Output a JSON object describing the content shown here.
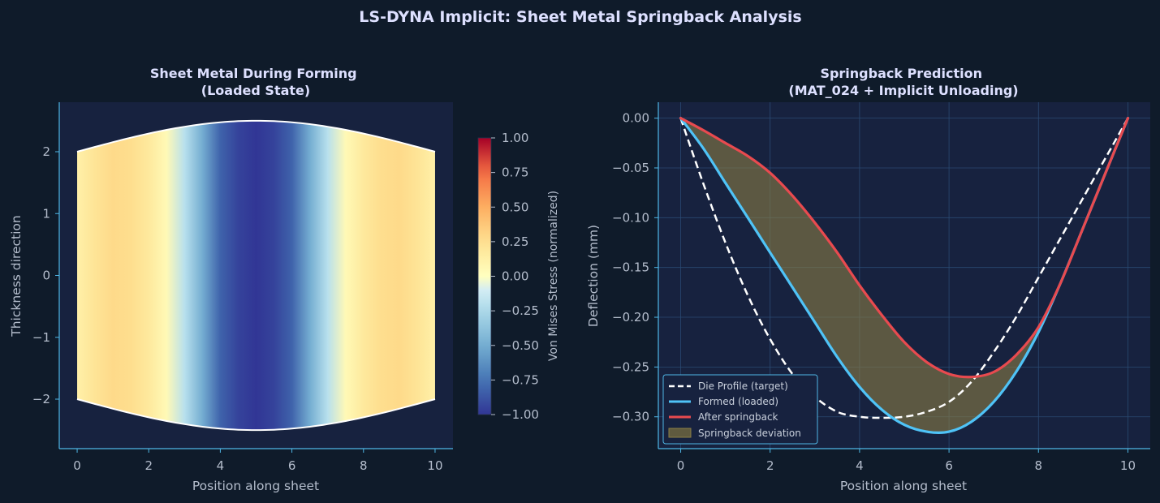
{
  "figure": {
    "suptitle": "LS-DYNA Implicit: Sheet Metal Springback Analysis",
    "background": "#0f1b2a",
    "axes_bg": "#17223f",
    "spine_color": "#4fb7e6",
    "text_color": "#b4bdcc",
    "title_color": "#dde0ff"
  },
  "chart_data": [
    {
      "type": "heatmap",
      "title": "Sheet Metal During Forming\n(Loaded State)",
      "xlabel": "Position along sheet",
      "ylabel": "Thickness direction",
      "xlim": [
        -0.5,
        10.5
      ],
      "ylim": [
        -2.8,
        2.8
      ],
      "xticks": [
        0,
        2,
        4,
        6,
        8,
        10
      ],
      "yticks": [
        -2,
        -1,
        0,
        1,
        2
      ],
      "x_range": [
        0,
        10
      ],
      "half_thickness_edge": 2.0,
      "half_thickness_center": 2.5,
      "outline_color": "#ffffff",
      "colormap": "RdYlBu_r",
      "colorbar": {
        "label": "Von Mises Stress (normalized)",
        "range": [
          -1.0,
          1.0
        ],
        "ticks": [
          "1.00",
          "0.75",
          "0.50",
          "0.25",
          "0.00",
          "−0.25",
          "−0.50",
          "−0.75",
          "−1.00"
        ],
        "tick_values": [
          1.0,
          0.75,
          0.5,
          0.25,
          0.0,
          -0.25,
          -0.5,
          -0.75,
          -1.0
        ]
      },
      "stress_profile": {
        "x": [
          0,
          0.5,
          1.0,
          1.5,
          2.0,
          2.5,
          3.0,
          3.5,
          4.0,
          4.5,
          5.0,
          5.5,
          6.0,
          6.5,
          7.0,
          7.5,
          8.0,
          8.5,
          9.0,
          9.5,
          10.0
        ],
        "value": [
          0.12,
          0.22,
          0.28,
          0.26,
          0.18,
          0.05,
          -0.2,
          -0.5,
          -0.82,
          -0.95,
          -1.0,
          -0.95,
          -0.82,
          -0.5,
          -0.2,
          0.05,
          0.18,
          0.26,
          0.28,
          0.22,
          0.12
        ]
      }
    },
    {
      "type": "line",
      "title": "Springback Prediction\n(MAT_024 + Implicit Unloading)",
      "xlabel": "Position along sheet",
      "ylabel": "Deflection (mm)",
      "xlim": [
        -0.5,
        10.5
      ],
      "ylim": [
        -0.332,
        0.016
      ],
      "xticks": [
        0,
        2,
        4,
        6,
        8,
        10
      ],
      "yticks": [
        0.0,
        -0.05,
        -0.1,
        -0.15,
        -0.2,
        -0.25,
        -0.3
      ],
      "ytick_labels": [
        "0.00",
        "−0.05",
        "−0.10",
        "−0.15",
        "−0.20",
        "−0.25",
        "−0.30"
      ],
      "grid": true,
      "legend_position": "lower-left",
      "x": [
        0,
        0.5,
        1.0,
        1.5,
        2.0,
        2.5,
        3.0,
        3.5,
        4.0,
        4.5,
        5.0,
        5.5,
        6.0,
        6.5,
        7.0,
        7.5,
        8.0,
        8.5,
        9.0,
        9.5,
        10.0
      ],
      "series": [
        {
          "name": "Die Profile (target)",
          "color": "#ffffff",
          "style": "dashed",
          "values": [
            0.0,
            -0.065,
            -0.125,
            -0.178,
            -0.222,
            -0.257,
            -0.28,
            -0.295,
            -0.3,
            -0.301,
            -0.3,
            -0.295,
            -0.285,
            -0.265,
            -0.235,
            -0.2,
            -0.16,
            -0.12,
            -0.08,
            -0.04,
            0.0
          ]
        },
        {
          "name": "Formed (loaded)",
          "color": "#4fc3f7",
          "style": "solid",
          "values": [
            0.0,
            -0.03,
            -0.065,
            -0.1,
            -0.135,
            -0.17,
            -0.205,
            -0.24,
            -0.27,
            -0.293,
            -0.308,
            -0.315,
            -0.315,
            -0.305,
            -0.285,
            -0.255,
            -0.215,
            -0.165,
            -0.11,
            -0.055,
            0.0
          ]
        },
        {
          "name": "After springback",
          "color": "#e84a4f",
          "style": "solid",
          "values": [
            0.0,
            -0.012,
            -0.025,
            -0.038,
            -0.055,
            -0.078,
            -0.105,
            -0.135,
            -0.168,
            -0.198,
            -0.225,
            -0.245,
            -0.257,
            -0.26,
            -0.255,
            -0.238,
            -0.21,
            -0.165,
            -0.11,
            -0.055,
            0.0
          ]
        }
      ],
      "fill": {
        "name": "Springback deviation",
        "between": [
          "Formed (loaded)",
          "After springback"
        ],
        "color": "#8b7d45",
        "opacity": 0.6
      }
    }
  ]
}
